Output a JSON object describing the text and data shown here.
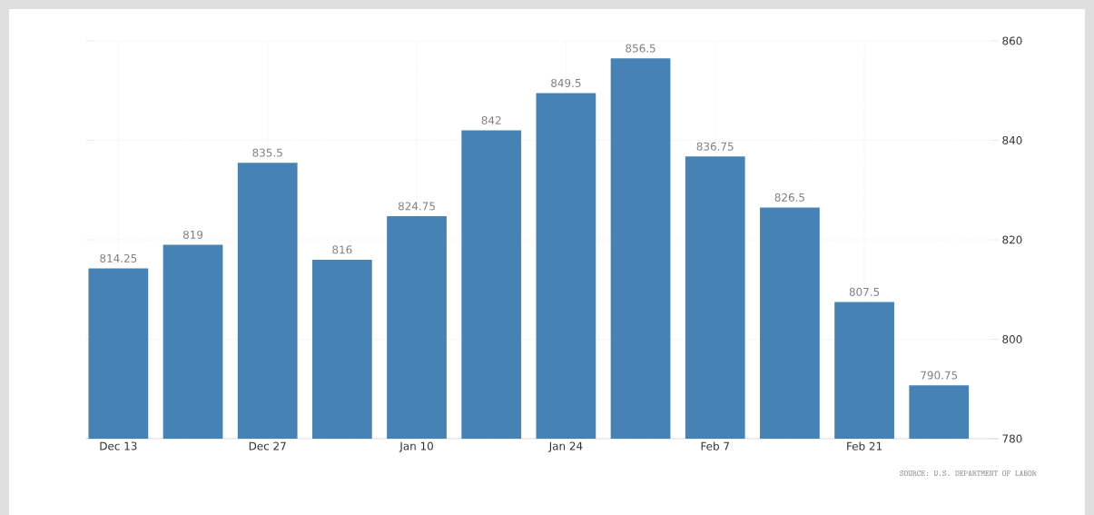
{
  "chart_data": {
    "type": "bar",
    "categories": [
      "Dec 13",
      null,
      "Dec 27",
      null,
      "Jan 10",
      null,
      "Jan 24",
      null,
      "Feb 7",
      null,
      "Feb 21",
      null
    ],
    "values": [
      814.25,
      819,
      835.5,
      816,
      824.75,
      842,
      849.5,
      856.5,
      836.75,
      826.5,
      807.5,
      790.75
    ],
    "color": "#4682b4",
    "ylim": [
      780,
      860
    ],
    "yticks": [
      780,
      800,
      820,
      840,
      860
    ],
    "grid": true,
    "data_labels": true,
    "annotations": [
      "SOURCE: U.S. DEPARTMENT OF LABOR"
    ]
  }
}
